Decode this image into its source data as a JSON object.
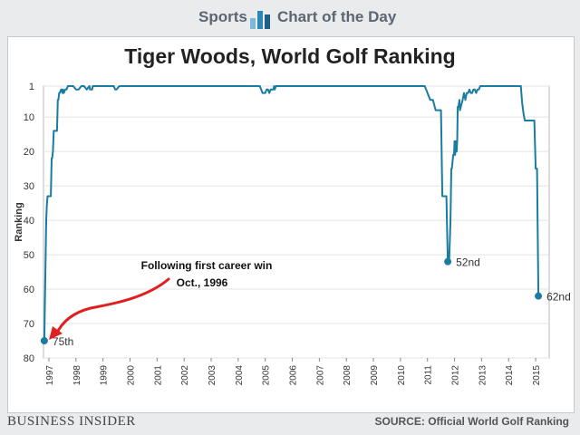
{
  "banner": {
    "left": "Sports",
    "right": "Chart of the Day"
  },
  "footer": {
    "brand": "BUSINESS INSIDER",
    "source": "SOURCE: Official World Golf Ranking"
  },
  "colors": {
    "line": "#1a7ca0",
    "arrow": "#e02020",
    "banner_icon": "#2f86b3"
  },
  "chart_data": {
    "type": "line",
    "title": "Tiger Woods, World Golf Ranking",
    "ylabel": "Ranking",
    "xlabel": "",
    "y_inverted": true,
    "ylim": [
      1,
      80
    ],
    "y_ticks": [
      1,
      10,
      20,
      30,
      40,
      50,
      60,
      70,
      80
    ],
    "xlim": [
      1996.8,
      2015.5
    ],
    "x_ticks": [
      "1997",
      "1998",
      "1999",
      "2000",
      "2001",
      "2002",
      "2003",
      "2004",
      "2005",
      "2006",
      "2007",
      "2008",
      "2009",
      "2010",
      "2011",
      "2012",
      "2013",
      "2014",
      "2015"
    ],
    "grid": "horizontal",
    "series": [
      {
        "x": [
          1996.83,
          1996.9,
          1996.92,
          1996.95,
          1997.0,
          1997.07,
          1997.1,
          1997.12,
          1997.15,
          1997.18,
          1997.2,
          1997.3,
          1997.33,
          1997.35,
          1997.38,
          1997.4,
          1997.45,
          1997.47,
          1997.5,
          1997.52,
          1997.55,
          1997.6,
          1997.65,
          1997.7,
          1997.75,
          1997.9,
          1998.0,
          1998.1,
          1998.2,
          1998.3,
          1998.4,
          1998.5,
          1998.52,
          1998.6,
          1998.62,
          1998.7,
          1998.9,
          1999.0,
          1999.2,
          1999.3,
          1999.4,
          1999.45,
          1999.5,
          1999.6,
          2000.0,
          2004.0,
          2004.5,
          2004.8,
          2004.85,
          2004.9,
          2005.0,
          2005.05,
          2005.1,
          2005.15,
          2005.2,
          2005.3,
          2005.33,
          2005.35,
          2005.4,
          2006.0,
          2009.0,
          2010.0,
          2010.9,
          2010.95,
          2011.0,
          2011.05,
          2011.1,
          2011.2,
          2011.3,
          2011.5,
          2011.55,
          2011.6,
          2011.7,
          2011.75,
          2011.8,
          2011.85,
          2011.88,
          2011.9,
          2011.95,
          2011.98,
          2012.0,
          2012.02,
          2012.05,
          2012.08,
          2012.1,
          2012.12,
          2012.15,
          2012.18,
          2012.2,
          2012.3,
          2012.35,
          2012.4,
          2012.45,
          2012.5,
          2012.55,
          2012.6,
          2012.65,
          2012.7,
          2012.75,
          2012.8,
          2012.85,
          2012.9,
          2012.95,
          2013.2,
          2013.6,
          2014.0,
          2014.3,
          2014.4,
          2014.45,
          2014.5,
          2014.55,
          2014.6,
          2014.7,
          2014.8,
          2014.9,
          2014.95,
          2015.0,
          2015.05,
          2015.1
        ],
        "y": [
          75,
          40,
          36,
          33,
          33,
          33,
          22,
          22,
          20,
          14,
          14,
          14,
          5,
          5,
          3,
          3,
          2,
          2,
          3,
          2,
          3,
          2,
          2,
          1,
          1,
          1,
          2,
          2,
          1,
          1,
          2,
          1,
          2,
          2,
          1,
          1,
          1,
          1,
          1,
          1,
          1,
          2,
          2,
          1,
          1,
          1,
          1,
          1,
          2,
          3,
          3,
          2,
          2,
          3,
          2,
          2,
          1,
          2,
          1,
          1,
          1,
          1,
          1,
          2,
          3,
          4,
          5,
          5,
          8,
          8,
          33,
          33,
          33,
          52,
          52,
          40,
          25,
          25,
          21,
          21,
          17,
          21,
          17,
          20,
          17,
          7,
          7,
          5,
          8,
          5,
          3,
          5,
          3,
          3,
          2,
          3,
          3,
          2,
          2,
          3,
          2,
          2,
          1,
          1,
          1,
          1,
          1,
          1,
          1,
          6,
          9,
          11,
          11,
          11,
          11,
          11,
          25,
          25,
          62
        ]
      }
    ],
    "annotations": [
      {
        "text": "Following first career win",
        "x": 1996.83,
        "y": 75
      },
      {
        "text": "Oct., 1996",
        "x": 1996.83,
        "y": 75
      }
    ],
    "point_labels": [
      {
        "label": "75th",
        "x": 1996.83,
        "y": 75
      },
      {
        "label": "52nd",
        "x": 2011.75,
        "y": 52
      },
      {
        "label": "62nd",
        "x": 2015.1,
        "y": 62
      }
    ]
  }
}
